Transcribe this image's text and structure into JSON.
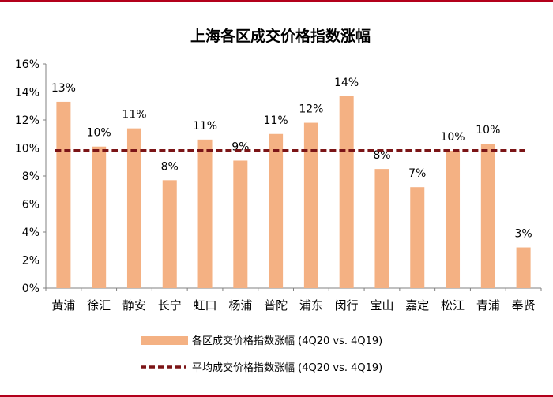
{
  "chart_data": {
    "type": "bar",
    "title": "上海各区成交价格指数涨幅",
    "categories": [
      "黄浦",
      "徐汇",
      "静安",
      "长宁",
      "虹口",
      "杨浦",
      "普陀",
      "浦东",
      "闵行",
      "宝山",
      "嘉定",
      "松江",
      "青浦",
      "奉贤"
    ],
    "series": [
      {
        "name": "各区成交价格指数涨幅 (4Q20 vs. 4Q19)",
        "values": [
          13.3,
          10.1,
          11.4,
          7.7,
          10.6,
          9.1,
          11.0,
          11.8,
          13.7,
          8.5,
          7.2,
          9.8,
          10.3,
          2.9
        ],
        "data_labels": [
          "13%",
          "10%",
          "11%",
          "8%",
          "11%",
          "9%",
          "11%",
          "12%",
          "14%",
          "8%",
          "7%",
          "10%",
          "10%",
          "3%"
        ],
        "color": "#f4b183"
      },
      {
        "name": "平均成交价格指数涨幅 (4Q20 vs. 4Q19)",
        "type": "line",
        "style": "dashed",
        "value": 9.8,
        "color": "#7b1416"
      }
    ],
    "y_ticks": [
      "0%",
      "2%",
      "4%",
      "6%",
      "8%",
      "10%",
      "12%",
      "14%",
      "16%"
    ],
    "ylim": [
      0,
      16
    ],
    "grid": false,
    "legend_position": "bottom"
  },
  "colors": {
    "frame": "#b3001b",
    "axis": "#808080",
    "text": "#000000"
  }
}
